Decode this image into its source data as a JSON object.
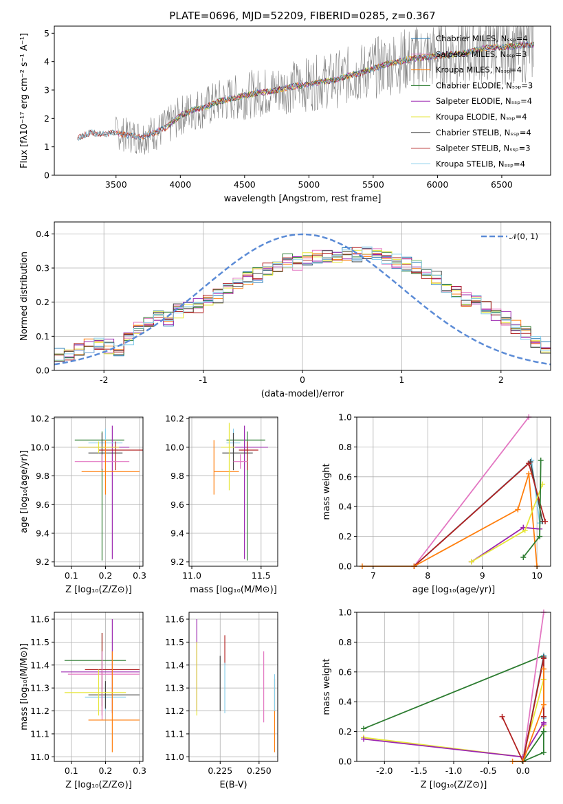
{
  "figure_title": "PLATE=0696, MJD=52209, FIBERID=0285, z=0.367",
  "chart_data": [
    {
      "id": "spectrum",
      "type": "line",
      "xlabel": "wavelength [Angstrom, rest frame]",
      "ylabel": "Flux [fλ10⁻¹⁷ erg cm⁻² s⁻¹ A⁻¹]",
      "xlim": [
        3020,
        6880
      ],
      "ylim": [
        0,
        5.25
      ],
      "xticks": [
        3500,
        4000,
        4500,
        5000,
        5500,
        6000,
        6500
      ],
      "yticks": [
        0,
        1,
        2,
        3,
        4,
        5
      ],
      "legend_placement": "upper-right",
      "legend": [
        {
          "label": "Chabrier MILES, Nₛₛₚ=4",
          "color": "#1f77b4"
        },
        {
          "label": "Salpeter MILES, Nₛₛₚ=3",
          "color": "#e377c2"
        },
        {
          "label": "Kroupa MILES, Nₛₛₚ=4",
          "color": "#ff7f0e"
        },
        {
          "label": "Chabrier ELODIE, Nₛₛₚ=3",
          "color": "#2e7d32"
        },
        {
          "label": "Salpeter ELODIE, Nₛₛₚ=4",
          "color": "#9c27b0"
        },
        {
          "label": "Kroupa ELODIE, Nₛₛₚ=4",
          "color": "#e6e639"
        },
        {
          "label": "Chabrier STELIB, Nₛₛₚ=4",
          "color": "#444444"
        },
        {
          "label": "Salpeter STELIB, Nₛₛₚ=3",
          "color": "#b22222"
        },
        {
          "label": "Kroupa STELIB, Nₛₛₚ=4",
          "color": "#87ceeb"
        }
      ],
      "data_color": "#808080",
      "data_x": [
        3200,
        3300,
        3400,
        3500,
        3600,
        3700,
        3800,
        3900,
        4000,
        4100,
        4200,
        4300,
        4400,
        4500,
        4600,
        4700,
        4800,
        4900,
        5000,
        5100,
        5200,
        5300,
        5400,
        5500,
        5600,
        5700,
        5800,
        5900,
        6000,
        6100,
        6200,
        6300,
        6400,
        6500,
        6600,
        6700,
        6750
      ],
      "data_y": [
        1.3,
        1.5,
        1.45,
        1.5,
        1.4,
        1.35,
        1.5,
        1.7,
        2.1,
        2.3,
        2.4,
        2.6,
        2.7,
        2.8,
        2.9,
        2.95,
        3.05,
        3.15,
        3.2,
        3.3,
        3.35,
        3.5,
        3.6,
        3.75,
        3.9,
        4.0,
        4.1,
        4.15,
        4.2,
        4.25,
        4.3,
        4.4,
        4.5,
        4.5,
        4.55,
        4.6,
        4.6
      ]
    },
    {
      "id": "residuals",
      "type": "area",
      "xlabel": "(data-model)/error",
      "ylabel": "Normed distribution",
      "xlim": [
        -2.5,
        2.5
      ],
      "ylim": [
        0,
        0.435
      ],
      "xticks": [
        -2,
        -1,
        0,
        1,
        2
      ],
      "yticks": [
        0.0,
        0.1,
        0.2,
        0.3,
        0.4
      ],
      "grid": true,
      "legend_placement": "upper-right",
      "legend": [
        {
          "label": "𝒩(0, 1)",
          "color": "#5b8bd6"
        }
      ],
      "bin_edges_start": -2.5,
      "bin_width": 0.1,
      "hist": [
        0.045,
        0.05,
        0.06,
        0.07,
        0.075,
        0.07,
        0.065,
        0.09,
        0.12,
        0.15,
        0.16,
        0.15,
        0.175,
        0.18,
        0.19,
        0.21,
        0.22,
        0.24,
        0.26,
        0.27,
        0.28,
        0.3,
        0.31,
        0.32,
        0.315,
        0.325,
        0.33,
        0.335,
        0.335,
        0.34,
        0.34,
        0.34,
        0.335,
        0.33,
        0.32,
        0.31,
        0.3,
        0.28,
        0.27,
        0.25,
        0.23,
        0.21,
        0.2,
        0.18,
        0.16,
        0.15,
        0.13,
        0.11,
        0.09,
        0.07
      ],
      "gaussian": {
        "mean": 0,
        "sigma": 1
      }
    },
    {
      "id": "age-vs-Z",
      "type": "scatter",
      "xlabel": "Z [log₁₀(Z/Z⊙)]",
      "ylabel": "age  [log₁₀(age/yr)]",
      "xlim": [
        0.05,
        0.31
      ],
      "ylim": [
        9.17,
        10.21
      ],
      "xticks": [
        0.1,
        0.2,
        0.3
      ],
      "yticks": [
        9.2,
        9.4,
        9.6,
        9.8,
        10.0,
        10.2
      ],
      "grid": true,
      "points": [
        {
          "x": 0.19,
          "y": 10.05,
          "xerr": [
            0.08,
            0.065
          ],
          "yerr": [
            0.84,
            0.06
          ],
          "color": "#2e7d32"
        },
        {
          "x": 0.22,
          "y": 10.0,
          "xerr": [
            0.1,
            0.05
          ],
          "yerr": [
            0.78,
            0.15
          ],
          "color": "#9c27b0"
        },
        {
          "x": 0.2,
          "y": 10.03,
          "xerr": [
            0.05,
            0.05
          ],
          "yerr": [
            0.1,
            0.1
          ],
          "color": "#87ceeb"
        },
        {
          "x": 0.19,
          "y": 9.96,
          "xerr": [
            0.04,
            0.06
          ],
          "yerr": [
            0.12,
            0.14
          ],
          "color": "#444444"
        },
        {
          "x": 0.23,
          "y": 9.98,
          "xerr": [
            0.05,
            0.08
          ],
          "yerr": [
            0.14,
            0.06
          ],
          "color": "#b22222"
        },
        {
          "x": 0.19,
          "y": 9.9,
          "xerr": [
            0.08,
            0.08
          ],
          "yerr": [
            0.05,
            0.05
          ],
          "color": "#e377c2"
        },
        {
          "x": 0.2,
          "y": 9.83,
          "xerr": [
            0.07,
            0.1
          ],
          "yerr": [
            0.16,
            0.22
          ],
          "color": "#ff7f0e"
        },
        {
          "x": 0.18,
          "y": 10.0,
          "xerr": [
            0.06,
            0.06
          ],
          "yerr": [
            0.04,
            0.04
          ],
          "color": "#e6e639"
        }
      ]
    },
    {
      "id": "age-vs-mass",
      "type": "scatter",
      "xlabel": "mass [log₁₀(M/M⊙)]",
      "ylabel": "",
      "xlim": [
        10.98,
        11.62
      ],
      "ylim": [
        9.17,
        10.21
      ],
      "xticks": [
        11.0,
        11.5
      ],
      "yticks": [
        9.2,
        9.4,
        9.6,
        9.8,
        10.0,
        10.2
      ],
      "grid": true,
      "points": [
        {
          "x": 11.4,
          "y": 10.05,
          "xerr": [
            0.15,
            0.13
          ],
          "yerr": [
            0.84,
            0.06
          ],
          "color": "#2e7d32"
        },
        {
          "x": 11.38,
          "y": 10.0,
          "xerr": [
            0.07,
            0.17
          ],
          "yerr": [
            0.78,
            0.15
          ],
          "color": "#9c27b0"
        },
        {
          "x": 11.3,
          "y": 10.03,
          "xerr": [
            0.05,
            0.05
          ],
          "yerr": [
            0.1,
            0.1
          ],
          "color": "#87ceeb"
        },
        {
          "x": 11.3,
          "y": 9.96,
          "xerr": [
            0.08,
            0.14
          ],
          "yerr": [
            0.12,
            0.14
          ],
          "color": "#444444"
        },
        {
          "x": 11.4,
          "y": 9.98,
          "xerr": [
            0.06,
            0.08
          ],
          "yerr": [
            0.14,
            0.06
          ],
          "color": "#b22222"
        },
        {
          "x": 11.35,
          "y": 9.9,
          "xerr": [
            0.05,
            0.05
          ],
          "yerr": [
            0.05,
            0.05
          ],
          "color": "#e377c2"
        },
        {
          "x": 11.16,
          "y": 9.83,
          "xerr": [
            0.0,
            0.18
          ],
          "yerr": [
            0.16,
            0.22
          ],
          "color": "#ff7f0e"
        },
        {
          "x": 11.27,
          "y": 10.0,
          "xerr": [
            0.06,
            0.04
          ],
          "yerr": [
            0.3,
            0.17
          ],
          "color": "#e6e639"
        }
      ]
    },
    {
      "id": "mass-weight-vs-age",
      "type": "line",
      "xlabel": "age  [log₁₀(age/yr)]",
      "ylabel": "mass weight",
      "xlim": [
        6.7,
        10.25
      ],
      "ylim": [
        0,
        1.0
      ],
      "xticks": [
        7,
        8,
        9,
        10
      ],
      "yticks": [
        0.0,
        0.2,
        0.4,
        0.6,
        0.8,
        1.0
      ],
      "grid": true,
      "series": [
        {
          "color": "#e377c2",
          "x": [
            7.75,
            9.85
          ],
          "y": [
            0.0,
            1.0
          ]
        },
        {
          "color": "#87ceeb",
          "x": [
            7.75,
            9.9,
            10.05
          ],
          "y": [
            0.0,
            0.71,
            0.29
          ]
        },
        {
          "color": "#444444",
          "x": [
            7.75,
            9.88,
            10.1
          ],
          "y": [
            0.0,
            0.7,
            0.3
          ]
        },
        {
          "color": "#b22222",
          "x": [
            7.75,
            9.85,
            10.15
          ],
          "y": [
            0.0,
            0.69,
            0.3
          ]
        },
        {
          "color": "#ff7f0e",
          "x": [
            6.8,
            7.75,
            9.65,
            9.85,
            10.0
          ],
          "y": [
            0.0,
            0.0,
            0.38,
            0.62,
            0.0
          ]
        },
        {
          "color": "#9c27b0",
          "x": [
            8.8,
            9.75,
            10.05
          ],
          "y": [
            0.03,
            0.26,
            0.25
          ]
        },
        {
          "color": "#e6e639",
          "x": [
            8.8,
            9.78,
            10.1
          ],
          "y": [
            0.03,
            0.24,
            0.55
          ]
        },
        {
          "color": "#2e7d32",
          "x": [
            9.75,
            10.05,
            10.07
          ],
          "y": [
            0.06,
            0.2,
            0.71
          ]
        }
      ]
    },
    {
      "id": "mass-vs-Z",
      "type": "scatter",
      "xlabel": "Z [log₁₀(Z/Z⊙)]",
      "ylabel": "mass [log₁₀(M/M⊙)]",
      "xlim": [
        0.05,
        0.31
      ],
      "ylim": [
        10.98,
        11.63
      ],
      "xticks": [
        0.1,
        0.2,
        0.3
      ],
      "yticks": [
        11.0,
        11.1,
        11.2,
        11.3,
        11.4,
        11.5,
        11.6
      ],
      "grid": true,
      "points": [
        {
          "x": 0.19,
          "y": 11.42,
          "xerr": [
            0.11,
            0.07
          ],
          "yerr": [
            0.2,
            0.12
          ],
          "color": "#2e7d32"
        },
        {
          "x": 0.22,
          "y": 11.37,
          "xerr": [
            0.15,
            0.08
          ],
          "yerr": [
            0.18,
            0.23
          ],
          "color": "#9c27b0"
        },
        {
          "x": 0.2,
          "y": 11.26,
          "xerr": [
            0.06,
            0.06
          ],
          "yerr": [
            0.06,
            0.06
          ],
          "color": "#87ceeb"
        },
        {
          "x": 0.2,
          "y": 11.27,
          "xerr": [
            0.05,
            0.1
          ],
          "yerr": [
            0.06,
            0.06
          ],
          "color": "#444444"
        },
        {
          "x": 0.19,
          "y": 11.38,
          "xerr": [
            0.05,
            0.11
          ],
          "yerr": [
            0.2,
            0.16
          ],
          "color": "#b22222"
        },
        {
          "x": 0.19,
          "y": 11.36,
          "xerr": [
            0.1,
            0.11
          ],
          "yerr": [
            0.2,
            0.1
          ],
          "color": "#e377c2"
        },
        {
          "x": 0.22,
          "y": 11.16,
          "xerr": [
            0.07,
            0.08
          ],
          "yerr": [
            0.14,
            0.3
          ],
          "color": "#ff7f0e"
        },
        {
          "x": 0.18,
          "y": 11.28,
          "xerr": [
            0.1,
            0.08
          ],
          "yerr": [
            0.1,
            0.1
          ],
          "color": "#e6e639"
        }
      ]
    },
    {
      "id": "mass-vs-EBV",
      "type": "scatter",
      "xlabel": "E(B-V)",
      "ylabel": "",
      "xlim": [
        0.205,
        0.262
      ],
      "ylim": [
        10.98,
        11.63
      ],
      "xticks": [
        0.225,
        0.25
      ],
      "yticks": [
        11.0,
        11.1,
        11.2,
        11.3,
        11.4,
        11.5,
        11.6
      ],
      "grid": true,
      "bars": [
        {
          "x": 0.21,
          "ylo": 11.2,
          "yhi": 11.6,
          "color": "#9c27b0"
        },
        {
          "x": 0.21,
          "ylo": 11.18,
          "yhi": 11.5,
          "color": "#e6e639"
        },
        {
          "x": 0.225,
          "ylo": 11.2,
          "yhi": 11.44,
          "color": "#444444"
        },
        {
          "x": 0.228,
          "ylo": 11.4,
          "yhi": 11.53,
          "color": "#b22222"
        },
        {
          "x": 0.228,
          "ylo": 11.19,
          "yhi": 11.41,
          "color": "#87ceeb"
        },
        {
          "x": 0.253,
          "ylo": 11.15,
          "yhi": 11.46,
          "color": "#e377c2"
        },
        {
          "x": 0.26,
          "ylo": 11.02,
          "yhi": 11.34,
          "color": "#ff7f0e"
        },
        {
          "x": 0.26,
          "ylo": 11.2,
          "yhi": 11.36,
          "color": "#87ceeb"
        }
      ]
    },
    {
      "id": "mass-weight-vs-Z",
      "type": "line",
      "xlabel": "Z [log₁₀(Z/Z⊙)]",
      "ylabel": "mass weight",
      "xlim": [
        -2.4,
        0.4
      ],
      "ylim": [
        0,
        1.0
      ],
      "xticks": [
        -2.0,
        -1.5,
        -1.0,
        -0.5,
        0.0
      ],
      "yticks": [
        0.0,
        0.2,
        0.4,
        0.6,
        0.8,
        1.0
      ],
      "grid": true,
      "series": [
        {
          "color": "#2e7d32",
          "x": [
            -2.3,
            0.3,
            0.3,
            0.0,
            0.3
          ],
          "y": [
            0.22,
            0.71,
            0.06,
            0.0,
            0.2
          ]
        },
        {
          "color": "#e6e639",
          "x": [
            -2.3,
            0.0,
            0.3,
            0.3
          ],
          "y": [
            0.16,
            0.03,
            0.55,
            0.24
          ]
        },
        {
          "color": "#9c27b0",
          "x": [
            -2.3,
            0.0,
            0.3,
            0.3
          ],
          "y": [
            0.15,
            0.03,
            0.26,
            0.25
          ]
        },
        {
          "color": "#e377c2",
          "x": [
            0.0,
            0.3
          ],
          "y": [
            0.0,
            1.0
          ]
        },
        {
          "color": "#87ceeb",
          "x": [
            0.0,
            0.3,
            0.3
          ],
          "y": [
            0.0,
            0.71,
            0.29
          ]
        },
        {
          "color": "#444444",
          "x": [
            0.0,
            0.3,
            0.3
          ],
          "y": [
            0.0,
            0.7,
            0.3
          ]
        },
        {
          "color": "#b22222",
          "x": [
            -0.3,
            0.0,
            0.3,
            0.3
          ],
          "y": [
            0.3,
            0.0,
            0.69,
            0.3
          ]
        },
        {
          "color": "#ff7f0e",
          "x": [
            -0.15,
            0.0,
            0.3,
            0.3
          ],
          "y": [
            0.0,
            0.0,
            0.38,
            0.62
          ]
        }
      ]
    }
  ]
}
